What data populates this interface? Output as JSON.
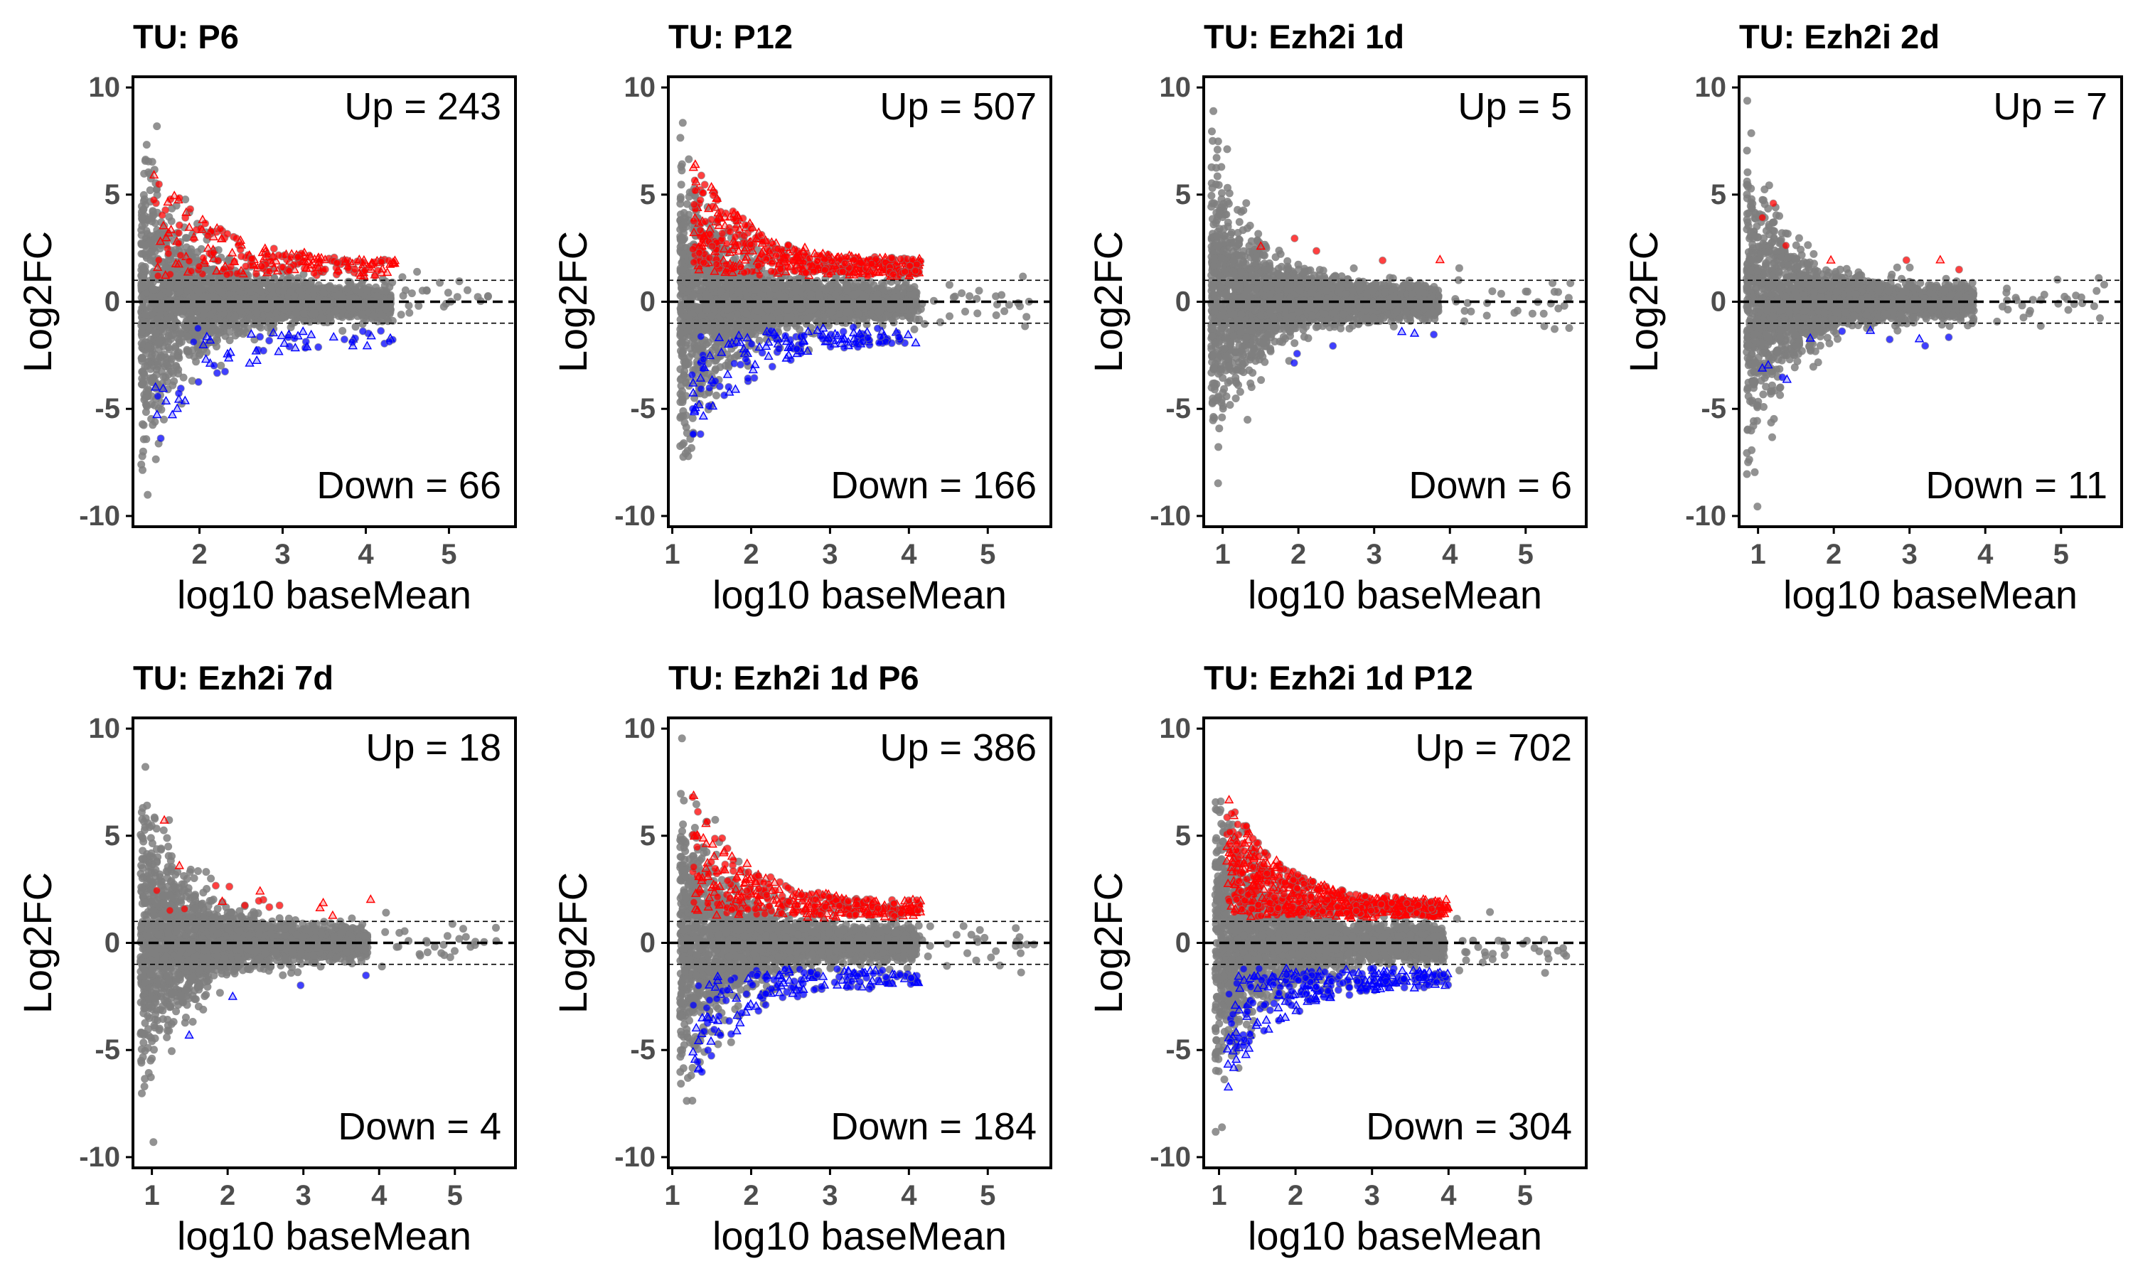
{
  "colors": {
    "ns": "#7f7f7f",
    "up": "#ff0000",
    "down": "#0000ff",
    "axis": "#000000",
    "tick_label": "#4d4d4d"
  },
  "chart_data": [
    {
      "type": "scatter",
      "title": "TU: P6",
      "xlabel": "log10 baseMean",
      "ylabel": "Log2FC",
      "xlim": [
        1.2,
        5.8
      ],
      "ylim": [
        -10.5,
        10.5
      ],
      "xticks": [
        2,
        3,
        4,
        5
      ],
      "yticks": [
        -10,
        -5,
        0,
        5,
        10
      ],
      "x_start": 1.3,
      "up_label": "Up = 243",
      "down_label": "Down = 66",
      "up_count": 243,
      "down_count": 66,
      "threshold_lines": [
        -1,
        0,
        1
      ],
      "grid": false,
      "legend": "none"
    },
    {
      "type": "scatter",
      "title": "TU: P12",
      "xlabel": "log10 baseMean",
      "ylabel": "Log2FC",
      "xlim": [
        0.95,
        5.8
      ],
      "ylim": [
        -10.5,
        10.5
      ],
      "xticks": [
        1,
        2,
        3,
        4,
        5
      ],
      "yticks": [
        -10,
        -5,
        0,
        5,
        10
      ],
      "x_start": 1.1,
      "up_label": "Up = 507",
      "down_label": "Down = 166",
      "up_count": 507,
      "down_count": 166,
      "threshold_lines": [
        -1,
        0,
        1
      ],
      "grid": false,
      "legend": "none"
    },
    {
      "type": "scatter",
      "title": "TU: Ezh2i 1d",
      "xlabel": "log10 baseMean",
      "ylabel": "Log2FC",
      "xlim": [
        0.75,
        5.8
      ],
      "ylim": [
        -10.5,
        10.5
      ],
      "xticks": [
        1,
        2,
        3,
        4,
        5
      ],
      "yticks": [
        -10,
        -5,
        0,
        5,
        10
      ],
      "x_start": 0.85,
      "up_label": "Up = 5",
      "down_label": "Down = 6",
      "up_count": 5,
      "down_count": 6,
      "threshold_lines": [
        -1,
        0,
        1
      ],
      "grid": false,
      "legend": "none"
    },
    {
      "type": "scatter",
      "title": "TU: Ezh2i 2d",
      "xlabel": "log10 baseMean",
      "ylabel": "Log2FC",
      "xlim": [
        0.75,
        5.8
      ],
      "ylim": [
        -10.5,
        10.5
      ],
      "xticks": [
        1,
        2,
        3,
        4,
        5
      ],
      "yticks": [
        -10,
        -5,
        0,
        5,
        10
      ],
      "x_start": 0.85,
      "up_label": "Up = 7",
      "down_label": "Down = 11",
      "up_count": 7,
      "down_count": 11,
      "threshold_lines": [
        -1,
        0,
        1
      ],
      "grid": false,
      "legend": "none"
    },
    {
      "type": "scatter",
      "title": "TU: Ezh2i 7d",
      "xlabel": "log10 baseMean",
      "ylabel": "Log2FC",
      "xlim": [
        0.75,
        5.8
      ],
      "ylim": [
        -10.5,
        10.5
      ],
      "xticks": [
        1,
        2,
        3,
        4,
        5
      ],
      "yticks": [
        -10,
        -5,
        0,
        5,
        10
      ],
      "x_start": 0.85,
      "up_label": "Up = 18",
      "down_label": "Down = 4",
      "up_count": 18,
      "down_count": 4,
      "threshold_lines": [
        -1,
        0,
        1
      ],
      "grid": false,
      "legend": "none"
    },
    {
      "type": "scatter",
      "title": "TU: Ezh2i 1d P6",
      "xlabel": "log10 baseMean",
      "ylabel": "Log2FC",
      "xlim": [
        0.95,
        5.8
      ],
      "ylim": [
        -10.5,
        10.5
      ],
      "xticks": [
        1,
        2,
        3,
        4,
        5
      ],
      "yticks": [
        -10,
        -5,
        0,
        5,
        10
      ],
      "x_start": 1.1,
      "up_label": "Up = 386",
      "down_label": "Down = 184",
      "up_count": 386,
      "down_count": 184,
      "threshold_lines": [
        -1,
        0,
        1
      ],
      "grid": false,
      "legend": "none"
    },
    {
      "type": "scatter",
      "title": "TU: Ezh2i 1d P12",
      "xlabel": "log10 baseMean",
      "ylabel": "Log2FC",
      "xlim": [
        0.8,
        5.8
      ],
      "ylim": [
        -10.5,
        10.5
      ],
      "xticks": [
        1,
        2,
        3,
        4,
        5
      ],
      "yticks": [
        -10,
        -5,
        0,
        5,
        10
      ],
      "x_start": 0.95,
      "up_label": "Up = 702",
      "down_label": "Down = 304",
      "up_count": 702,
      "down_count": 304,
      "threshold_lines": [
        -1,
        0,
        1
      ],
      "grid": false,
      "legend": "none"
    }
  ]
}
